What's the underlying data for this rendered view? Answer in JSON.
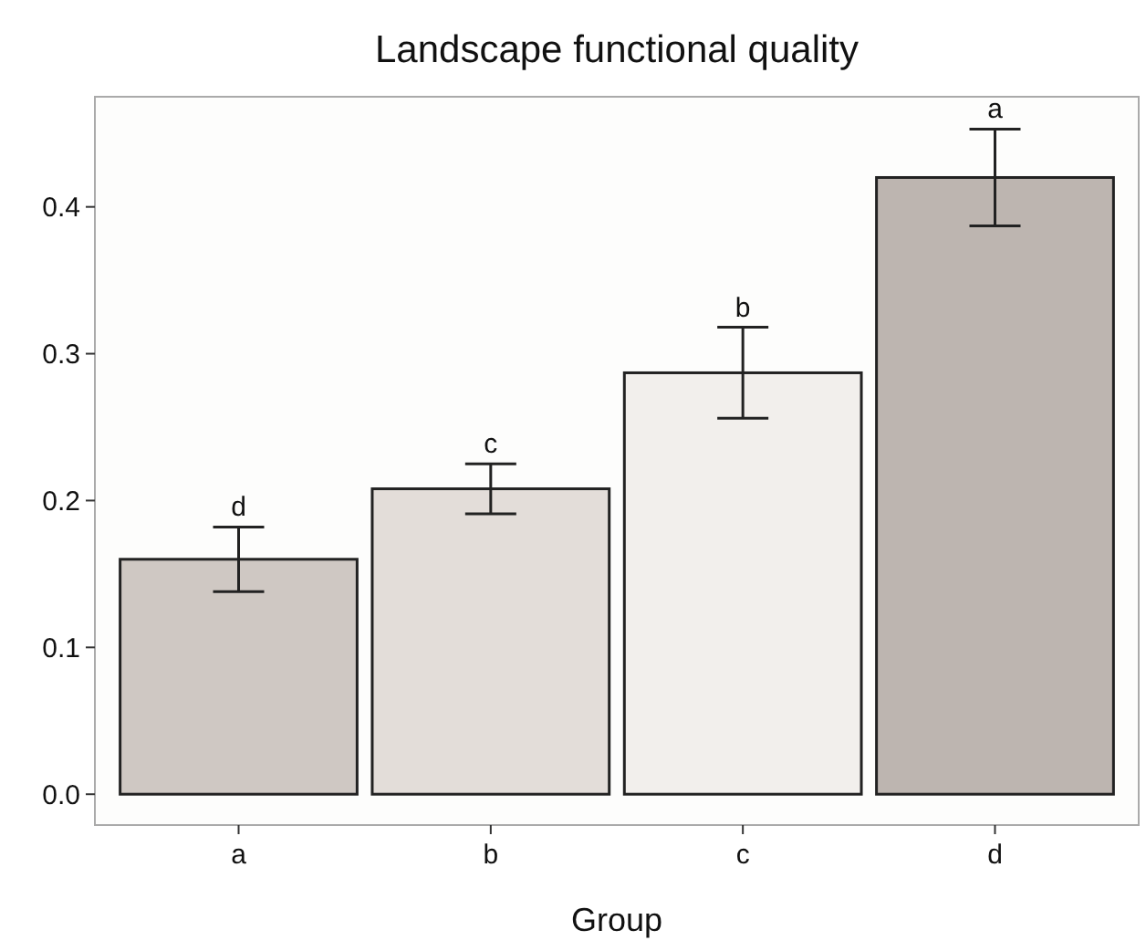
{
  "chart_data": {
    "type": "bar",
    "title": "Landscape functional quality",
    "xlabel": "Group",
    "categories": [
      "a",
      "b",
      "c",
      "d"
    ],
    "values": [
      0.16,
      0.208,
      0.287,
      0.42
    ],
    "errors": [
      0.022,
      0.017,
      0.031,
      0.033
    ],
    "colors": [
      "#cfc8c3",
      "#e3ddd9",
      "#f2efec",
      "#bdb5b0"
    ],
    "ylim": [
      -0.021,
      0.475
    ],
    "yticks": [
      {
        "value": 0,
        "label": "0.0"
      },
      0.1,
      0.2,
      0.3,
      0.4
    ],
    "annotations": [
      {
        "text": "d",
        "x": "a",
        "y": 0.182
      },
      {
        "text": "c",
        "x": "b",
        "y": 0.225
      },
      {
        "text": "b",
        "x": "c",
        "y": 0.318
      },
      {
        "text": "a",
        "x": "d",
        "y": 0.453
      }
    ]
  }
}
